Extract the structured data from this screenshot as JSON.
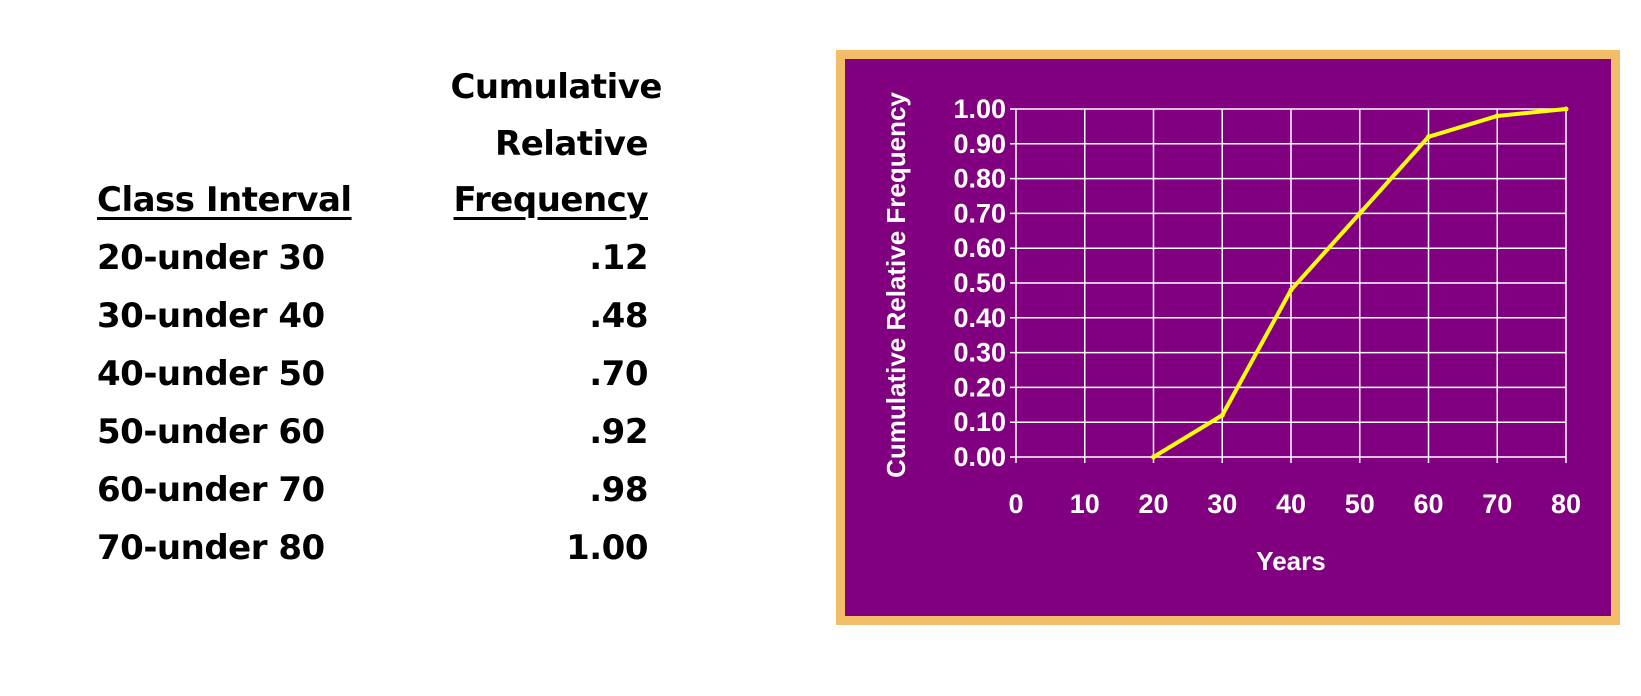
{
  "table": {
    "header_cumulative": "Cumulative",
    "header_relative": "Relative",
    "header_frequency": "Frequency",
    "header_class": "Class Interval",
    "rows": [
      {
        "label": "20-under 30",
        "value": ".12"
      },
      {
        "label": "30-under 40",
        "value": ".48"
      },
      {
        "label": "40-under 50",
        "value": ".70"
      },
      {
        "label": "50-under 60",
        "value": ".92"
      },
      {
        "label": "60-under 70",
        "value": ".98"
      },
      {
        "label": "70-under 80",
        "value": "1.00"
      }
    ]
  },
  "colors": {
    "plot_background": "#800080",
    "frame_border": "#f2bc68",
    "line": "#ffff00",
    "grid": "#ffffff",
    "text": "#ffffff"
  },
  "chart_data": {
    "type": "line",
    "x": [
      20,
      30,
      40,
      50,
      60,
      70,
      80
    ],
    "series": [
      {
        "values": [
          0.0,
          0.12,
          0.48,
          0.7,
          0.92,
          0.98,
          1.0
        ]
      }
    ],
    "xlabel": "Years",
    "ylabel": "Cumulative Relative Frequency",
    "xlim": [
      0,
      80
    ],
    "ylim": [
      0,
      1
    ],
    "x_ticks": [
      "0",
      "10",
      "20",
      "30",
      "40",
      "50",
      "60",
      "70",
      "80"
    ],
    "y_ticks": [
      "0.00",
      "0.10",
      "0.20",
      "0.30",
      "0.40",
      "0.50",
      "0.60",
      "0.70",
      "0.80",
      "0.90",
      "1.00"
    ],
    "grid": true
  }
}
